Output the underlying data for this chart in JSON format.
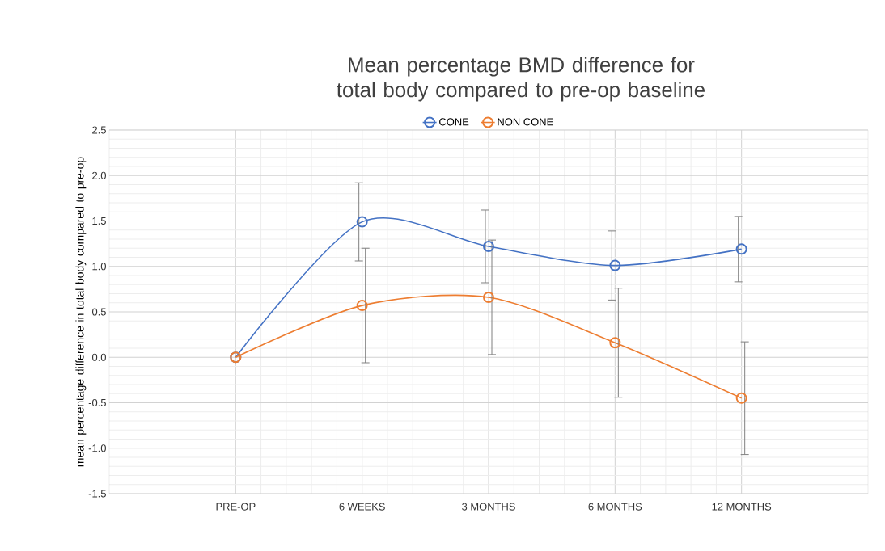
{
  "chart_data": {
    "type": "line",
    "title": "Mean percentage BMD difference for total body compared to pre-op baseline",
    "ylabel": "mean percentage difference in total body compared to pre-op",
    "categories": [
      "PRE-OP",
      "6 WEEKS",
      "3 MONTHS",
      "6 MONTHS",
      "12 MONTHS"
    ],
    "series": [
      {
        "name": "CONE",
        "color": "#4472c4",
        "values": [
          0,
          1.49,
          1.22,
          1.01,
          1.19
        ],
        "errors": [
          null,
          0.43,
          0.4,
          0.38,
          0.36
        ]
      },
      {
        "name": "NON CONE",
        "color": "#ed7d31",
        "values": [
          0,
          0.57,
          0.66,
          0.16,
          -0.45
        ],
        "errors": [
          null,
          0.63,
          0.63,
          0.6,
          0.62
        ]
      }
    ],
    "ylim": [
      -1.5,
      2.5
    ],
    "yticks": [
      {
        "value": -1.5,
        "label": "-1.5"
      },
      {
        "value": -1,
        "label": "-1.0"
      },
      {
        "value": -0.5,
        "label": "-0.5"
      },
      {
        "value": 0,
        "label": "0.0"
      },
      {
        "value": 0.5,
        "label": "0.5"
      },
      {
        "value": 1,
        "label": "1.0"
      },
      {
        "value": 1.5,
        "label": "1.5"
      },
      {
        "value": 2,
        "label": "2.0"
      },
      {
        "value": 2.5,
        "label": "2.5"
      }
    ],
    "grid": true,
    "legend": "top",
    "marker": "circle",
    "line_style": "solid"
  }
}
